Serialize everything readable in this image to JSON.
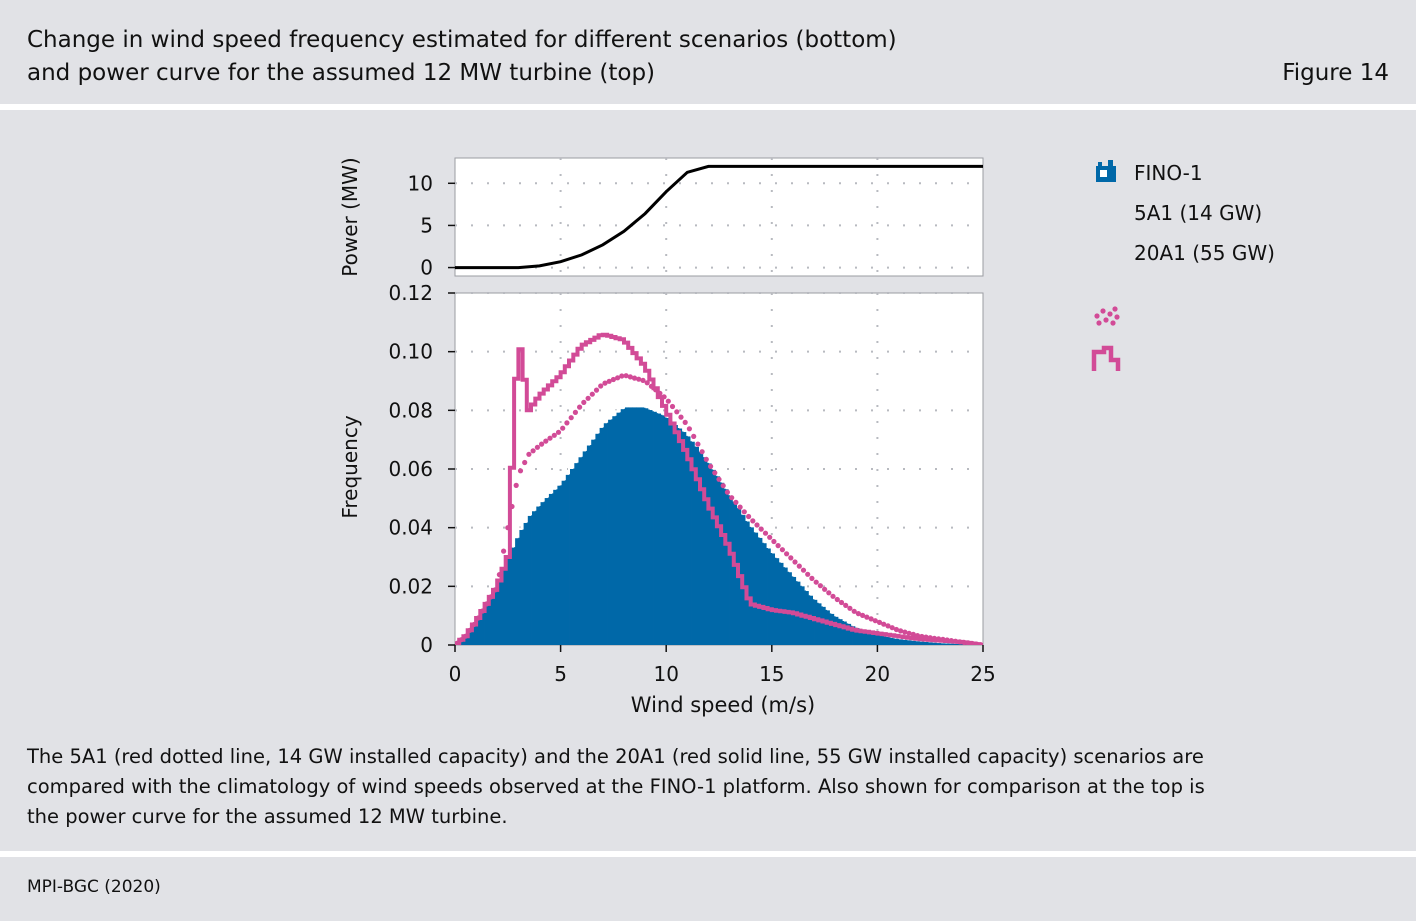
{
  "header": {
    "title_line1": "Change in wind speed frequency estimated for different scenarios (bottom)",
    "title_line2": "and power curve for the assumed 12 MW turbine (top)",
    "figure_label": "Figure 14"
  },
  "caption": {
    "line1": "The 5A1 (red dotted line, 14 GW installed capacity) and the 20A1 (red solid line, 55 GW installed capacity) scenarios are",
    "line2": "compared with the climatology of wind speeds observed at the FINO-1 platform.  Also shown for comparison at the top is",
    "line3": "the power curve for the assumed 12 MW turbine."
  },
  "footer": {
    "source": "MPI-BGC (2020)"
  },
  "colors": {
    "fino": "#0068a8",
    "scenario": "#d24b97",
    "power": "#000000",
    "background": "#e1e2e6",
    "plot_bg": "#ffffff"
  },
  "chart_data": [
    {
      "type": "line",
      "panel": "top",
      "ylabel": "Power (MW)",
      "xlabel": "",
      "xlim": [
        0,
        25
      ],
      "ylim": [
        -1,
        13
      ],
      "yticks": [
        0,
        5,
        10
      ],
      "ytick_labels": [
        "0",
        "5",
        "10"
      ],
      "grid": true,
      "series": [
        {
          "name": "",
          "x": [
            0,
            1,
            2,
            3,
            4,
            5,
            6,
            7,
            8,
            9,
            10,
            11,
            12,
            13,
            14,
            15,
            16,
            17,
            18,
            19,
            20,
            21,
            22,
            23,
            24,
            25
          ],
          "y": [
            0,
            0,
            0,
            0,
            0.2,
            0.7,
            1.5,
            2.7,
            4.3,
            6.4,
            9.0,
            11.3,
            12.0,
            12.0,
            12.0,
            12.0,
            12.0,
            12.0,
            12.0,
            12.0,
            12.0,
            12.0,
            12.0,
            12.0,
            12.0,
            12.0
          ]
        }
      ]
    },
    {
      "type": "bar",
      "panel": "bottom",
      "xlabel": "Wind speed (m/s)",
      "ylabel": "Frequency",
      "xlim": [
        0,
        25
      ],
      "ylim": [
        0,
        0.12
      ],
      "xticks": [
        0,
        5,
        10,
        15,
        20,
        25
      ],
      "xtick_labels": [
        "0",
        "5",
        "10",
        "15",
        "20",
        "25"
      ],
      "yticks": [
        0,
        0.02,
        0.04,
        0.06,
        0.08,
        0.1,
        0.12
      ],
      "ytick_labels": [
        "0",
        "0.02",
        "0.04",
        "0.06",
        "0.08",
        "0.10",
        "0.12"
      ],
      "grid": true,
      "legend": {
        "position": "right"
      },
      "x": [
        0,
        0.5,
        1,
        1.5,
        2,
        2.5,
        3,
        3.5,
        4,
        5,
        6,
        7,
        8,
        9,
        10,
        11,
        12,
        13,
        14,
        15,
        16,
        17,
        18,
        19,
        20,
        21,
        22,
        23,
        24,
        25
      ],
      "series": [
        {
          "name": "FINO-1",
          "style": "filled-histogram",
          "values": [
            0.0,
            0.003,
            0.008,
            0.014,
            0.02,
            0.03,
            0.038,
            0.044,
            0.048,
            0.055,
            0.065,
            0.075,
            0.081,
            0.081,
            0.078,
            0.072,
            0.063,
            0.052,
            0.041,
            0.032,
            0.024,
            0.016,
            0.01,
            0.006,
            0.0035,
            0.002,
            0.0012,
            0.0006,
            0.0003,
            0.0
          ]
        },
        {
          "name": "5A1 (14 GW)",
          "style": "dotted",
          "values": [
            0.0,
            0.003,
            0.008,
            0.014,
            0.02,
            0.04,
            0.058,
            0.065,
            0.068,
            0.073,
            0.082,
            0.089,
            0.092,
            0.09,
            0.084,
            0.075,
            0.062,
            0.051,
            0.043,
            0.036,
            0.029,
            0.022,
            0.016,
            0.011,
            0.008,
            0.005,
            0.003,
            0.002,
            0.001,
            0.0
          ]
        },
        {
          "name": "20A1 (55 GW)",
          "style": "solid-step",
          "values": [
            0.0,
            0.003,
            0.008,
            0.014,
            0.02,
            0.03,
            0.106,
            0.08,
            0.085,
            0.092,
            0.102,
            0.106,
            0.104,
            0.095,
            0.08,
            0.065,
            0.048,
            0.033,
            0.014,
            0.012,
            0.011,
            0.009,
            0.007,
            0.005,
            0.004,
            0.003,
            0.002,
            0.0015,
            0.001,
            0.0
          ]
        }
      ]
    }
  ]
}
